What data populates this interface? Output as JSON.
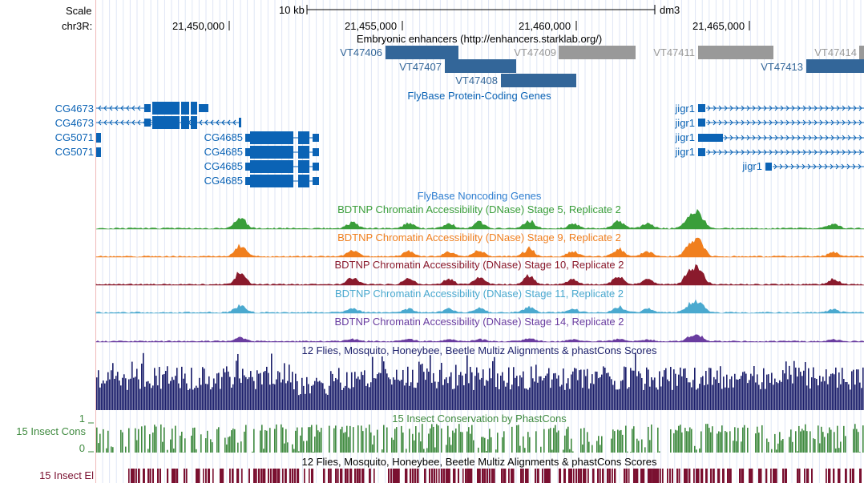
{
  "header": {
    "scale_label": "Scale",
    "scale_bar_text": "10 kb",
    "assembly": "dm3",
    "chrom_label": "chr3R:",
    "ticks": [
      "21,450,000",
      "21,455,000",
      "21,460,000",
      "21,465,000"
    ]
  },
  "tracks": {
    "enhancers": {
      "title": "Embryonic enhancers (http://enhancers.starklab.org/)",
      "items": [
        {
          "name": "VT47406",
          "color": "#336699"
        },
        {
          "name": "VT47407",
          "color": "#336699"
        },
        {
          "name": "VT47408",
          "color": "#336699"
        },
        {
          "name": "VT47409",
          "color": "#999999"
        },
        {
          "name": "VT47411",
          "color": "#999999"
        },
        {
          "name": "VT47414",
          "color": "#999999"
        },
        {
          "name": "VT47413",
          "color": "#336699"
        }
      ]
    },
    "genes": {
      "title": "FlyBase Protein-Coding Genes",
      "color": "#0b63b5",
      "items": [
        {
          "name": "CG4673"
        },
        {
          "name": "CG4673"
        },
        {
          "name": "CG5071"
        },
        {
          "name": "CG5071"
        },
        {
          "name": "CG4685"
        },
        {
          "name": "CG4685"
        },
        {
          "name": "CG4685"
        },
        {
          "name": "CG4685"
        },
        {
          "name": "jigr1"
        },
        {
          "name": "jigr1"
        },
        {
          "name": "jigr1"
        },
        {
          "name": "jigr1"
        },
        {
          "name": "jigr1"
        }
      ]
    },
    "noncoding": {
      "title": "FlyBase Noncoding Genes",
      "color": "#2f7fd1"
    },
    "dnase": [
      {
        "title": "BDTNP Chromatin Accessibility (DNase) Stage 5, Replicate 2",
        "color": "#3a9e3a"
      },
      {
        "title": "BDTNP Chromatin Accessibility (DNase) Stage 9, Replicate 2",
        "color": "#f07f1e"
      },
      {
        "title": "BDTNP Chromatin Accessibility (DNase) Stage 10, Replicate 2",
        "color": "#8a1a2c"
      },
      {
        "title": "BDTNP Chromatin Accessibility (DNase) Stage 11, Replicate 2",
        "color": "#4aa9cf"
      },
      {
        "title": "BDTNP Chromatin Accessibility (DNase) Stage 14, Replicate 2",
        "color": "#6a3da0"
      }
    ],
    "multiz": {
      "title": "12 Flies, Mosquito, Honeybee, Beetle Multiz Alignments & phastCons Scores",
      "color": "#1c1f6b"
    },
    "phastcons": {
      "title": "15 Insect Conservation by PhastCons",
      "label": "15 Insect Cons",
      "ymax": "1",
      "ymin": "0",
      "color": "#3f8a3f"
    },
    "elements": {
      "title": "12 Flies, Mosquito, Honeybee, Beetle Multiz Alignments & phastCons Scores",
      "label": "15 Insect El",
      "color": "#7a1030"
    }
  }
}
